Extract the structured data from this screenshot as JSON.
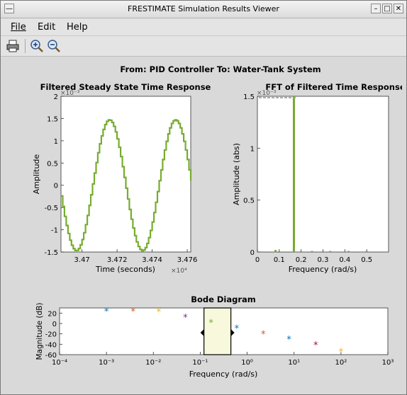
{
  "window": {
    "title": "FRESTIMATE Simulation Results Viewer"
  },
  "menu": {
    "file": "File",
    "edit": "Edit",
    "help": "Help"
  },
  "toolbar": {
    "icons": [
      "print-icon",
      "zoom-in-icon",
      "zoom-out-icon"
    ]
  },
  "figure": {
    "main_title": "From: PID Controller  To: Water-Tank System"
  },
  "time_plot": {
    "title": "Filtered Steady State Time Response",
    "xlabel": "Time (seconds)",
    "ylabel": "Amplitude",
    "x_ticks": [
      "3.47",
      "3.472",
      "3.474",
      "3.476"
    ],
    "y_ticks": [
      "2",
      "1.5",
      "1",
      "0.5",
      "0",
      "-0.5",
      "-1",
      "-1.5"
    ],
    "x_exponent": "×10⁴",
    "y_exponent": "×10⁻³"
  },
  "fft_plot": {
    "title": "FFT of Filtered Time Response",
    "xlabel": "Frequency (rad/s)",
    "ylabel": "Amplitude (abs)",
    "x_ticks": [
      "0",
      "0.1",
      "0.2",
      "0.3",
      "0.4",
      "0.5"
    ],
    "y_ticks": [
      "1.5",
      "1",
      "0.5",
      "0"
    ],
    "y_exponent": "×10⁻³"
  },
  "bode_plot": {
    "title": "Bode Diagram",
    "xlabel": "Frequency  (rad/s)",
    "ylabel": "Magnitude (dB)",
    "x_ticks": [
      "10⁻⁴",
      "10⁻³",
      "10⁻²",
      "10⁻¹",
      "10⁰",
      "10¹",
      "10²",
      "10³"
    ],
    "y_ticks": [
      "20",
      "0",
      "-20",
      "-40",
      "-60"
    ]
  },
  "chart_data": [
    {
      "type": "line",
      "title": "Filtered Steady State Time Response",
      "xlabel": "Time (seconds)",
      "ylabel": "Amplitude",
      "xlim": [
        34688,
        34762
      ],
      "ylim": [
        -0.0015,
        0.002
      ],
      "x_scale_label": "×10⁴",
      "y_scale_label": "×10⁻³",
      "grid": false,
      "series": [
        {
          "color": "#77ac30",
          "amplitude": 0.00147,
          "period_s": 37.7,
          "peaks_x": [
            34715.3,
            34753.0
          ],
          "troughs_x": [
            34696.5,
            34734.2
          ],
          "start_value": -0.0005
        }
      ]
    },
    {
      "type": "bar",
      "title": "FFT of Filtered Time Response",
      "xlabel": "Frequency (rad/s)",
      "ylabel": "Amplitude (abs)",
      "xlim": [
        0,
        0.6
      ],
      "ylim": [
        0,
        0.0015
      ],
      "y_scale_label": "×10⁻³",
      "grid": false,
      "x": [
        0.083,
        0.167,
        0.25,
        0.333,
        0.417,
        0.5
      ],
      "values": [
        2e-05,
        0.00148,
        1e-05,
        8e-06,
        6e-06,
        4e-06
      ]
    },
    {
      "type": "scatter",
      "title": "Bode Diagram",
      "xlabel": "Frequency  (rad/s)",
      "ylabel": "Magnitude (dB)",
      "x_scale": "log",
      "xlim": [
        0.0001,
        1000
      ],
      "ylim": [
        -60,
        30
      ],
      "grid": false,
      "highlight_band": [
        0.12,
        0.45
      ],
      "series": [
        {
          "color": "#0072bd",
          "x": [
            0.001,
            0.6
          ],
          "y": [
            24,
            -9
          ]
        },
        {
          "color": "#d95319",
          "x": [
            0.0037,
            2.2
          ],
          "y": [
            24,
            -20
          ]
        },
        {
          "color": "#edb120",
          "x": [
            0.013,
            100
          ],
          "y": [
            23,
            -54
          ]
        },
        {
          "color": "#7e2f8e",
          "x": [
            0.048
          ],
          "y": [
            12
          ]
        },
        {
          "color": "#77ac30",
          "x": [
            0.17
          ],
          "y": [
            2
          ]
        },
        {
          "color": "#0072bd",
          "x": [
            7.8
          ],
          "y": [
            -30
          ]
        },
        {
          "color": "#a2142f",
          "x": [
            29
          ],
          "y": [
            -41
          ]
        }
      ]
    }
  ]
}
